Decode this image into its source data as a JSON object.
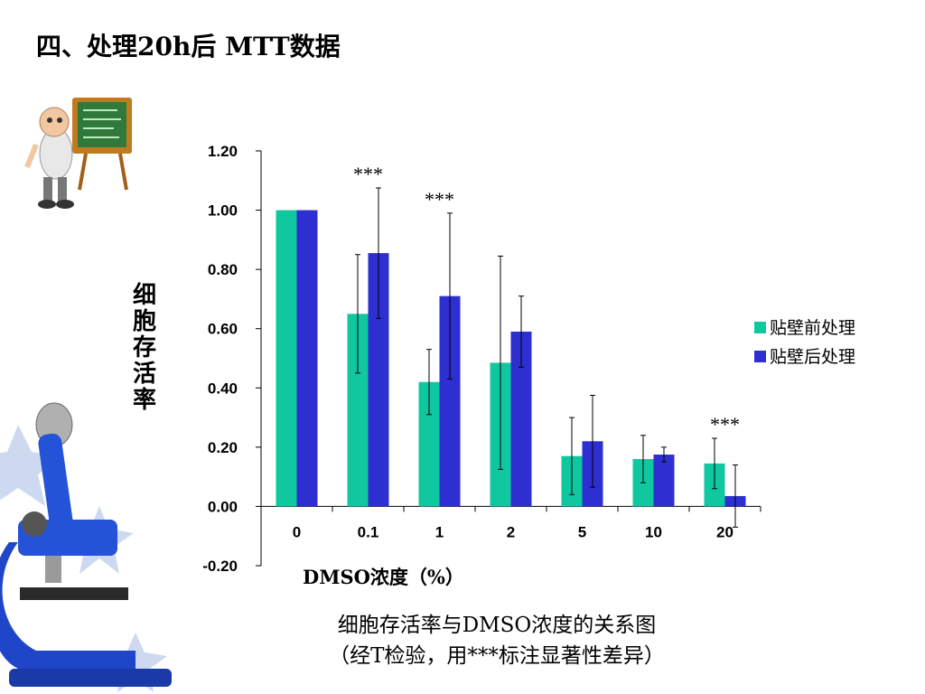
{
  "slide_title": "四、处理20h后 MTT数据",
  "caption": {
    "line1": "细胞存活率与DMSO浓度的关系图",
    "line2": "（经T检验，用***标注显著性差异）"
  },
  "chart_data": {
    "type": "bar",
    "title": "",
    "xlabel": "DMSO浓度（%）",
    "ylabel": "细胞存活率",
    "categories": [
      "0",
      "0.1",
      "1",
      "2",
      "5",
      "10",
      "20"
    ],
    "ylim": [
      -0.2,
      1.2
    ],
    "ytick_labels": [
      "-0.20",
      "0.00",
      "0.20",
      "0.40",
      "0.60",
      "0.80",
      "1.00",
      "1.20"
    ],
    "ytick_values": [
      -0.2,
      0,
      0.2,
      0.4,
      0.6,
      0.8,
      1.0,
      1.2
    ],
    "grid": false,
    "legend_position": "right",
    "series": [
      {
        "name": "贴壁前处理",
        "color": "#10C8A0",
        "values": [
          1.0,
          0.65,
          0.42,
          0.485,
          0.17,
          0.16,
          0.145
        ],
        "error": [
          0,
          0.2,
          0.11,
          0.36,
          0.13,
          0.08,
          0.085
        ]
      },
      {
        "name": "贴壁后处理",
        "color": "#2E2FD0",
        "values": [
          1.0,
          0.855,
          0.71,
          0.59,
          0.22,
          0.175,
          0.035
        ],
        "error": [
          0,
          0.22,
          0.28,
          0.12,
          0.155,
          0.025,
          0.105
        ]
      }
    ],
    "annotations": [
      {
        "category": "0.1",
        "text": "***"
      },
      {
        "category": "1",
        "text": "***"
      },
      {
        "category": "20",
        "text": "***"
      }
    ]
  },
  "icons": [
    "teacher-at-chalkboard-icon",
    "microscope-icon"
  ]
}
